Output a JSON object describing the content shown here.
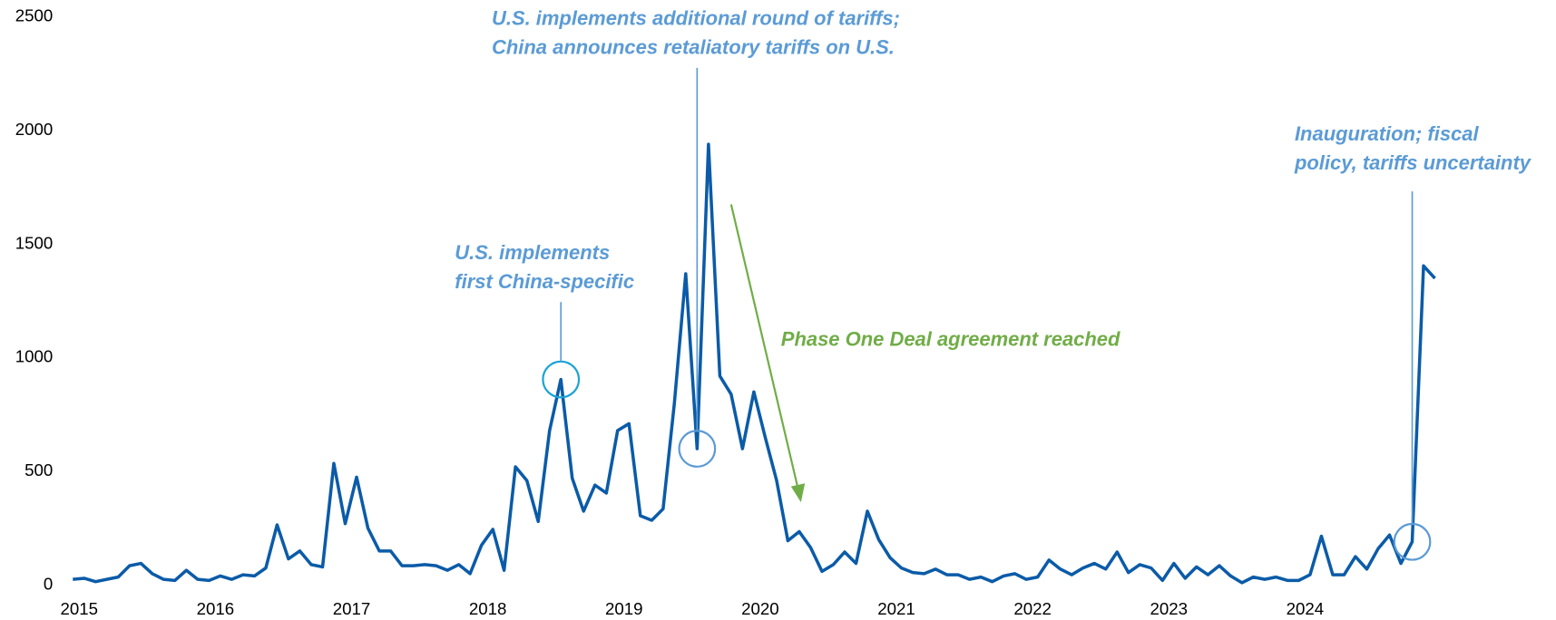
{
  "chart_data": {
    "type": "line",
    "categories": [
      null,
      "2015",
      null,
      null,
      null,
      null,
      null,
      null,
      null,
      null,
      null,
      null,
      null,
      "2016",
      null,
      null,
      null,
      null,
      null,
      null,
      null,
      null,
      null,
      null,
      null,
      "2017",
      null,
      null,
      null,
      null,
      null,
      null,
      null,
      null,
      null,
      null,
      null,
      "2018",
      null,
      null,
      null,
      null,
      null,
      null,
      null,
      null,
      null,
      null,
      null,
      "2019",
      null,
      null,
      null,
      null,
      null,
      null,
      null,
      null,
      null,
      null,
      null,
      "2020",
      null,
      null,
      null,
      null,
      null,
      null,
      null,
      null,
      null,
      null,
      null,
      "2021",
      null,
      null,
      null,
      null,
      null,
      null,
      null,
      null,
      null,
      null,
      null,
      "2022",
      null,
      null,
      null,
      null,
      null,
      null,
      null,
      null,
      null,
      null,
      null,
      "2023",
      null,
      null,
      null,
      null,
      null,
      null,
      null,
      null,
      null,
      null,
      null,
      "2024",
      null,
      null,
      null,
      null,
      null,
      null,
      null,
      null,
      null,
      null,
      null
    ],
    "series": [
      {
        "color": "#0b5ba8",
        "values": [
          25,
          30,
          15,
          25,
          35,
          85,
          95,
          50,
          25,
          20,
          65,
          25,
          20,
          40,
          25,
          45,
          40,
          75,
          265,
          115,
          150,
          90,
          80,
          535,
          270,
          475,
          250,
          150,
          150,
          85,
          85,
          90,
          85,
          65,
          90,
          50,
          175,
          245,
          65,
          520,
          460,
          280,
          680,
          905,
          470,
          325,
          440,
          405,
          680,
          710,
          305,
          285,
          335,
          800,
          1370,
          600,
          1940,
          920,
          840,
          600,
          850,
          650,
          460,
          195,
          235,
          165,
          60,
          90,
          145,
          95,
          325,
          200,
          120,
          75,
          55,
          50,
          70,
          45,
          45,
          25,
          35,
          15,
          40,
          50,
          25,
          35,
          110,
          70,
          45,
          75,
          95,
          70,
          145,
          55,
          90,
          75,
          20,
          95,
          30,
          80,
          45,
          85,
          40,
          10,
          35,
          25,
          35,
          20,
          20,
          45,
          215,
          45,
          45,
          125,
          70,
          160,
          220,
          95,
          190,
          1405,
          1350
        ]
      }
    ],
    "ylim": [
      0,
      2500
    ],
    "yticks": [
      0,
      500,
      1000,
      1500,
      2000,
      2500
    ],
    "grid": false,
    "annotations": [
      {
        "lines": [
          "U.S. implements",
          "first China-specific"
        ],
        "color": "#5b9bd5"
      },
      {
        "lines": [
          "U.S. implements additional round of tariffs;",
          "China announces retaliatory tariffs on U.S."
        ],
        "color": "#5b9bd5"
      },
      {
        "lines": [
          "Inauguration; fiscal",
          "policy, tariffs uncertainty"
        ],
        "color": "#5b9bd5"
      },
      {
        "lines": [
          "Phase One Deal agreement reached"
        ],
        "color": "#70ad47"
      }
    ]
  }
}
